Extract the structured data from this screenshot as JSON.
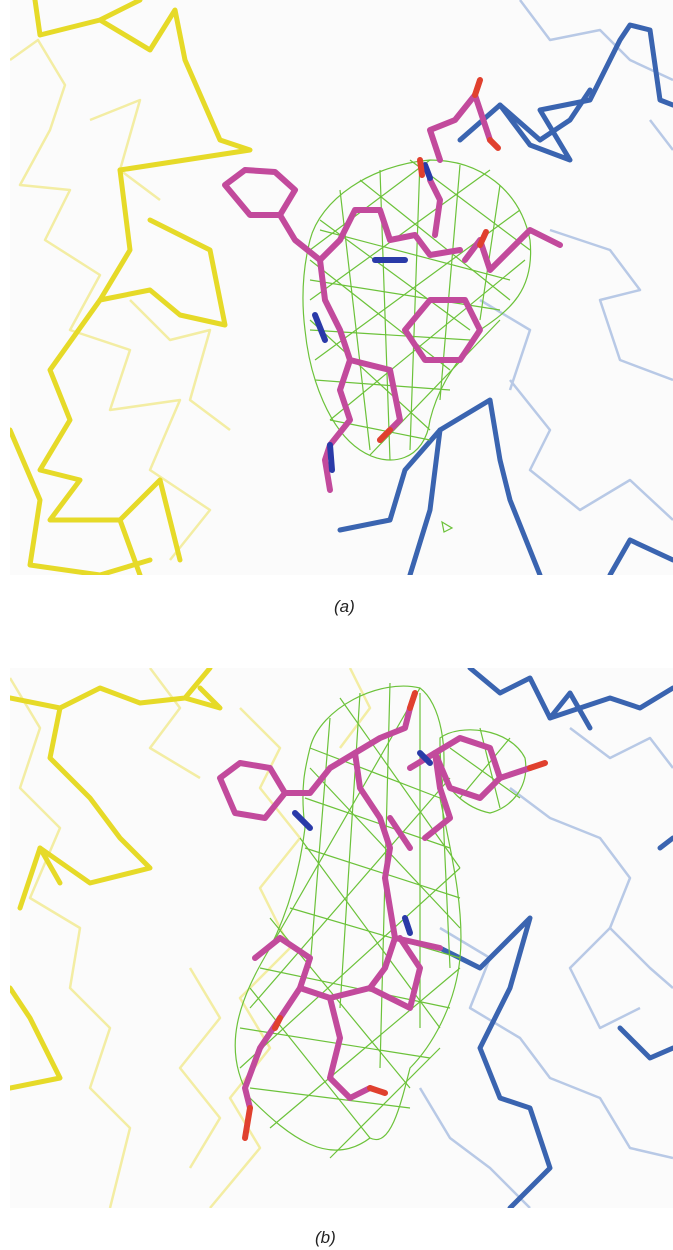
{
  "panels": [
    {
      "id": "a",
      "caption": "(a)"
    },
    {
      "id": "b",
      "caption": "(b)"
    }
  ],
  "colors": {
    "chain_left": "#e8dc2a",
    "chain_left_faded": "#f2ec9a",
    "chain_right": "#3c6ab4",
    "chain_right_faded": "#a9bde0",
    "ligand_carbon": "#c24a9c",
    "ligand_nitrogen": "#2a3aa8",
    "ligand_oxygen": "#e0402e",
    "density_mesh": "#6cc23a"
  }
}
